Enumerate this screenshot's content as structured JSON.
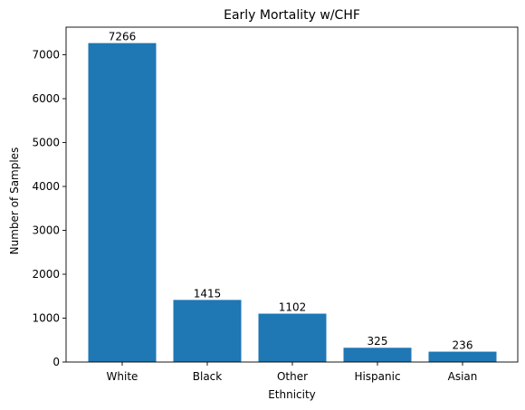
{
  "chart_data": {
    "type": "bar",
    "title": "Early Mortality w/CHF",
    "xlabel": "Ethnicity",
    "ylabel": "Number of Samples",
    "categories": [
      "White",
      "Black",
      "Other",
      "Hispanic",
      "Asian"
    ],
    "values": [
      7266,
      1415,
      1102,
      325,
      236
    ],
    "data_labels": [
      "7266",
      "1415",
      "1102",
      "325",
      "236"
    ],
    "ylim": [
      0,
      7629.3
    ],
    "yticks": [
      0,
      1000,
      2000,
      3000,
      4000,
      5000,
      6000,
      7000
    ],
    "bar_color": "#1f77b4",
    "grid": false,
    "legend": "none"
  }
}
